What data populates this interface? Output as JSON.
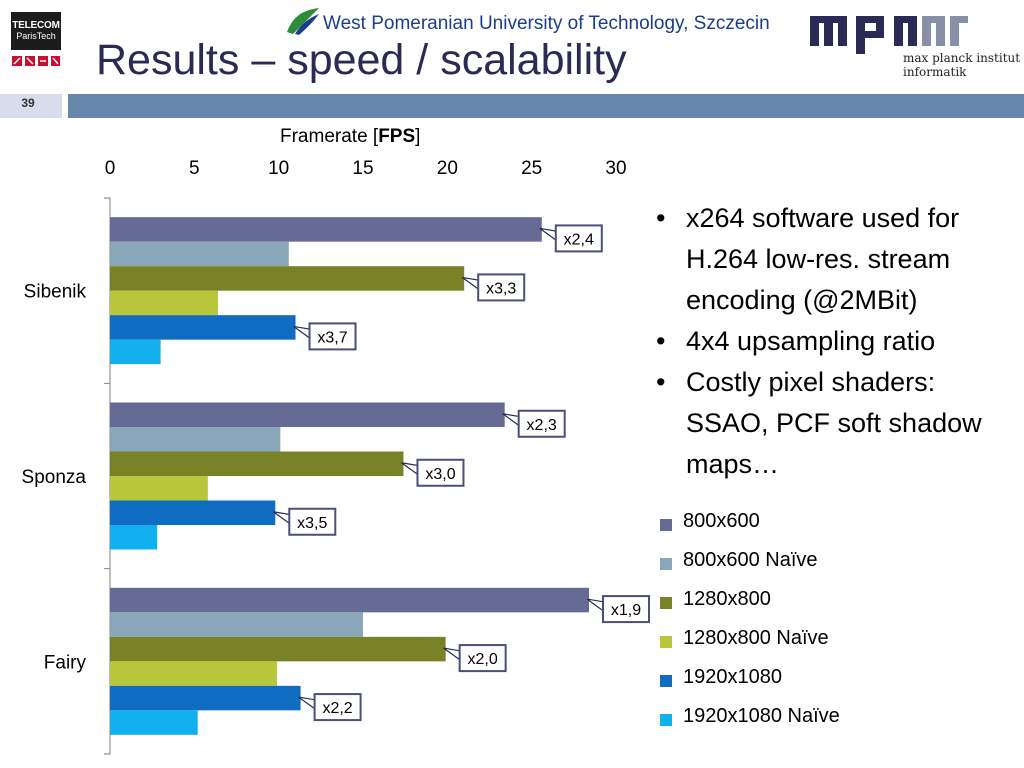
{
  "header": {
    "title": "Results – speed / scalability",
    "page_number": "39",
    "university": "West Pomeranian University of Technology, Szczecin",
    "telecom_logo": {
      "line1": "TELECOM",
      "line2": "ParisTech"
    },
    "mpi_logo": {
      "line1": "max planck institut",
      "line2": "informatik"
    }
  },
  "bullets": [
    "x264 software used for H.264 low-res. stream encoding (@2MBit)",
    "4x4 upsampling ratio",
    "Costly pixel shaders: SSAO, PCF soft shadow maps…"
  ],
  "bullet_glyph": "•",
  "axis_title_prefix": "Framerate [",
  "axis_title_bold": "FPS",
  "axis_title_suffix": "]",
  "colors": {
    "title": "#2a2a55",
    "header_bar": "#6887ad",
    "page_box": "#d9dcea",
    "university_blue": "#1a3e8c"
  },
  "chart_data": {
    "type": "bar",
    "orientation": "horizontal",
    "xlabel": "Framerate [FPS]",
    "xlim": [
      0,
      30
    ],
    "xticks": [
      0,
      5,
      10,
      15,
      20,
      25,
      30
    ],
    "axis_position": "top",
    "grid": false,
    "legend_placement": "right",
    "categories": [
      "Sibenik",
      "Sponza",
      "Fairy"
    ],
    "series": [
      {
        "name": "800x600",
        "color": "#666b95",
        "values": [
          25.6,
          23.4,
          28.4
        ]
      },
      {
        "name": "800x600 Naïve",
        "color": "#8aa6b9",
        "values": [
          10.6,
          10.1,
          15.0
        ]
      },
      {
        "name": "1280x800",
        "color": "#7a8228",
        "values": [
          21.0,
          17.4,
          19.9
        ]
      },
      {
        "name": "1280x800 Naïve",
        "color": "#b9c63a",
        "values": [
          6.4,
          5.8,
          9.9
        ]
      },
      {
        "name": "1920x1080",
        "color": "#0f6cc0",
        "values": [
          11.0,
          9.8,
          11.3
        ]
      },
      {
        "name": "1920x1080 Naïve",
        "color": "#12b0ee",
        "values": [
          3.0,
          2.8,
          5.2
        ]
      }
    ],
    "annotations": [
      {
        "category": "Sibenik",
        "series": "800x600",
        "text": "x2,4"
      },
      {
        "category": "Sibenik",
        "series": "1280x800",
        "text": "x3,3"
      },
      {
        "category": "Sibenik",
        "series": "1920x1080",
        "text": "x3,7"
      },
      {
        "category": "Sponza",
        "series": "800x600",
        "text": "x2,3"
      },
      {
        "category": "Sponza",
        "series": "1280x800",
        "text": "x3,0"
      },
      {
        "category": "Sponza",
        "series": "1920x1080",
        "text": "x3,5"
      },
      {
        "category": "Fairy",
        "series": "800x600",
        "text": "x1,9"
      },
      {
        "category": "Fairy",
        "series": "1280x800",
        "text": "x2,0"
      },
      {
        "category": "Fairy",
        "series": "1920x1080",
        "text": "x2,2"
      }
    ]
  }
}
